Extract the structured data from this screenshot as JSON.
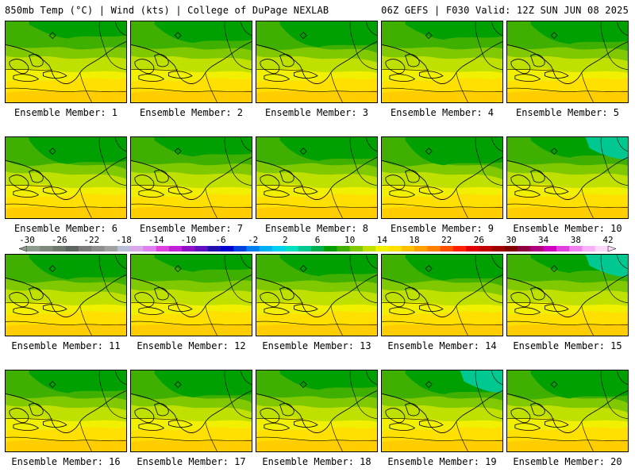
{
  "header": {
    "left": "850mb Temp (°C) | Wind (kts) | College of DuPage NEXLAB",
    "right": "06Z GEFS | F030 Valid: 12Z SUN JUN 08 2025"
  },
  "panels": [
    {
      "label": "Ensemble Member: 1"
    },
    {
      "label": "Ensemble Member: 2"
    },
    {
      "label": "Ensemble Member: 3"
    },
    {
      "label": "Ensemble Member: 4"
    },
    {
      "label": "Ensemble Member: 5"
    },
    {
      "label": "Ensemble Member: 6"
    },
    {
      "label": "Ensemble Member: 7"
    },
    {
      "label": "Ensemble Member: 8"
    },
    {
      "label": "Ensemble Member: 9"
    },
    {
      "label": "Ensemble Member: 10"
    },
    {
      "label": "Ensemble Member: 11"
    },
    {
      "label": "Ensemble Member: 12"
    },
    {
      "label": "Ensemble Member: 13"
    },
    {
      "label": "Ensemble Member: 14"
    },
    {
      "label": "Ensemble Member: 15"
    },
    {
      "label": "Ensemble Member: 16"
    },
    {
      "label": "Ensemble Member: 17"
    },
    {
      "label": "Ensemble Member: 18"
    },
    {
      "label": "Ensemble Member: 19"
    },
    {
      "label": "Ensemble Member: 20"
    }
  ],
  "colorbar": {
    "labels": [
      "-30",
      "-26",
      "-22",
      "-18",
      "-14",
      "-10",
      "-6",
      "-2",
      "2",
      "6",
      "10",
      "14",
      "18",
      "22",
      "26",
      "30",
      "34",
      "38",
      "42"
    ],
    "colors": [
      "#8c9b8c",
      "#7d8a7d",
      "#6e786e",
      "#5f665f",
      "#7c7c7c",
      "#8e8e8e",
      "#a0a0a0",
      "#b8c0d8",
      "#d8a8e8",
      "#e080f0",
      "#e040e0",
      "#c020d8",
      "#9010c8",
      "#6010c0",
      "#2010b0",
      "#0000d0",
      "#0040e0",
      "#0080f0",
      "#00b0f0",
      "#00d0f0",
      "#00e0c0",
      "#00c890",
      "#00b050",
      "#00a000",
      "#40b000",
      "#80c800",
      "#c0e000",
      "#f0f000",
      "#ffe000",
      "#ffc000",
      "#ffa000",
      "#ff8000",
      "#ff5000",
      "#ff2000",
      "#e00000",
      "#c00000",
      "#a00000",
      "#800000",
      "#900040",
      "#b00080",
      "#d000c0",
      "#e040e0",
      "#f080f0",
      "#f8b0f8",
      "#fcd8fc"
    ]
  },
  "field_colors": {
    "yellow": "#f0f000",
    "yellow_orange": "#ffe000",
    "orange": "#ffc000",
    "lime": "#c0e000",
    "lightgreen": "#80c800",
    "green": "#40b000",
    "darkgreen": "#00a000",
    "teal": "#00c890"
  }
}
